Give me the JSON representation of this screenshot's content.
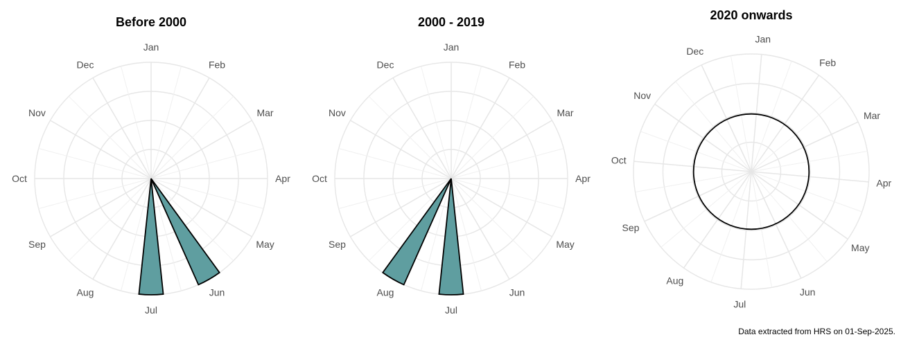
{
  "chart_data": [
    {
      "type": "polar-bar",
      "title": "Before 2000",
      "categories": [
        "Jan",
        "Feb",
        "Mar",
        "Apr",
        "May",
        "Jun",
        "Jul",
        "Aug",
        "Sep",
        "Oct",
        "Nov",
        "Dec"
      ],
      "values": [
        0,
        0,
        0,
        0,
        0,
        1,
        1,
        0,
        0,
        0,
        0,
        0
      ],
      "rlim": [
        0,
        1
      ],
      "grid": true
    },
    {
      "type": "polar-bar",
      "title": "2000 - 2019",
      "categories": [
        "Jan",
        "Feb",
        "Mar",
        "Apr",
        "May",
        "Jun",
        "Jul",
        "Aug",
        "Sep",
        "Oct",
        "Nov",
        "Dec"
      ],
      "values": [
        0,
        0,
        0,
        0,
        0,
        0,
        1,
        1,
        0,
        0,
        0,
        0
      ],
      "rlim": [
        0,
        1
      ],
      "grid": true
    },
    {
      "type": "polar-bar",
      "title": "2020 onwards",
      "categories": [
        "Jan",
        "Feb",
        "Mar",
        "Apr",
        "May",
        "Jun",
        "Jul",
        "Aug",
        "Sep",
        "Oct",
        "Nov",
        "Dec"
      ],
      "values": [
        0,
        0,
        0,
        0,
        0,
        0,
        0,
        0,
        0,
        0,
        0,
        0
      ],
      "rlim": [
        0,
        1
      ],
      "grid": true
    }
  ],
  "caption": "Data extracted from HRS on 01-Sep-2025.",
  "colors": {
    "bar_fill": "#5f9ea0",
    "bar_stroke": "#000000",
    "grid": "#e6e6e6"
  }
}
